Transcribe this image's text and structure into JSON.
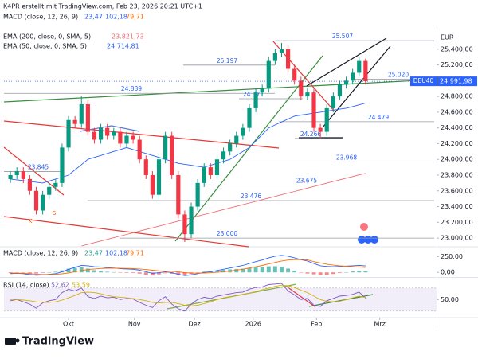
{
  "header": "K4PR erstellt mit TradingView.com, Feb 23, 2026 20:21 UTC+1",
  "footer": {
    "brand": "TradingView"
  },
  "chart_data": [
    {
      "type": "candlestick",
      "currency": "EUR",
      "legend": [
        {
          "name": "MACD (close, 12, 26, 9)",
          "values": [
            "23,47",
            "102,18",
            "79,71"
          ],
          "colors": [
            "#2962ff",
            "#2962ff",
            "#ff6d00"
          ]
        }
      ],
      "categories": [
        null,
        null,
        null,
        null,
        null,
        null,
        null,
        null,
        null,
        null,
        null,
        null,
        null,
        null,
        null,
        null,
        null,
        null,
        null,
        null,
        null,
        null,
        null,
        null,
        null,
        null,
        null,
        null,
        null,
        null,
        null,
        null,
        null,
        null,
        null,
        null,
        null,
        null,
        null,
        null,
        null,
        null,
        null,
        null,
        null,
        null,
        null,
        null,
        null,
        null,
        null,
        null,
        null,
        null,
        null,
        null
      ],
      "open": [
        23750,
        23800,
        23850,
        23750,
        23600,
        23350,
        23550,
        23650,
        23700,
        24150,
        24500,
        24450,
        24700,
        24350,
        24250,
        24400,
        24300,
        24350,
        24200,
        24300,
        24250,
        24000,
        23800,
        23550,
        24000,
        24300,
        23800,
        23300,
        23050,
        23400,
        23700,
        23900,
        23800,
        24000,
        24100,
        24200,
        24300,
        24400,
        24650,
        24850,
        24900,
        25250,
        25350,
        25400,
        25150,
        25000,
        24800,
        24850,
        24400,
        24350,
        24650,
        24800,
        24950,
        25000,
        25100,
        25250
      ],
      "high": [
        23850,
        23900,
        23900,
        23800,
        23650,
        23600,
        23700,
        23750,
        24200,
        24550,
        24550,
        24800,
        24750,
        24400,
        24450,
        24450,
        24400,
        24400,
        24350,
        24350,
        24300,
        24050,
        23850,
        24050,
        24350,
        24350,
        23850,
        23350,
        23450,
        23750,
        23950,
        23950,
        24050,
        24150,
        24250,
        24350,
        24450,
        24700,
        24900,
        24950,
        25300,
        25400,
        25480,
        25450,
        25200,
        25050,
        24900,
        24900,
        24450,
        24700,
        24850,
        25000,
        25050,
        25150,
        25300,
        25280
      ],
      "low": [
        23700,
        23750,
        23700,
        23550,
        23300,
        23300,
        23500,
        23600,
        23650,
        24100,
        24400,
        24400,
        24300,
        24200,
        24200,
        24250,
        24250,
        24150,
        24150,
        24200,
        23950,
        23750,
        23500,
        23500,
        23950,
        23750,
        23250,
        22950,
        23000,
        23350,
        23650,
        23750,
        23750,
        23950,
        24050,
        24150,
        24250,
        24350,
        24600,
        24800,
        24850,
        25200,
        25300,
        25100,
        24950,
        24750,
        24750,
        24350,
        24270,
        24300,
        24600,
        24750,
        24900,
        24950,
        25050,
        24950
      ],
      "close": [
        23800,
        23850,
        23750,
        23600,
        23350,
        23550,
        23650,
        23700,
        24150,
        24500,
        24450,
        24700,
        24350,
        24250,
        24400,
        24300,
        24350,
        24200,
        24300,
        24250,
        24000,
        23800,
        23550,
        24000,
        24300,
        23800,
        23300,
        23050,
        23400,
        23700,
        23900,
        23800,
        24000,
        24100,
        24200,
        24300,
        24400,
        24650,
        24850,
        24900,
        25250,
        25350,
        25400,
        25150,
        25000,
        24800,
        24850,
        24400,
        24350,
        24650,
        24800,
        24950,
        25000,
        25100,
        25250,
        24991.98
      ],
      "up_color": "#089981",
      "down_color": "#f23645",
      "series": [
        {
          "name": "EMA (200, close, 0, SMA, 5)",
          "last_label": "23.821,73",
          "color": "#f06b73",
          "values": [
            null,
            null,
            null,
            null,
            null,
            null,
            null,
            null,
            null,
            null,
            null,
            22900,
            22921,
            22942,
            22963,
            22984,
            23005,
            23026,
            23047,
            23068,
            23089,
            23110,
            23131,
            23152,
            23173,
            23194,
            23215,
            23236,
            23257,
            23278,
            23299,
            23320,
            23341,
            23362,
            23383,
            23404,
            23425,
            23446,
            23467,
            23488,
            23509,
            23530,
            23551,
            23572,
            23593,
            23614,
            23635,
            23656,
            23677,
            23698,
            23719,
            23740,
            23761,
            23782,
            23803,
            23821.73
          ]
        },
        {
          "name": "EMA (50, close, 0, SMA, 5)",
          "last_label": "24.714,81",
          "color": "#2962ff",
          "values": [
            23750,
            23740,
            23730,
            23720,
            23710,
            23700,
            23725,
            23750,
            23775,
            23800,
            23867,
            23933,
            24000,
            24025,
            24050,
            24075,
            24100,
            24125,
            24150,
            24125,
            24100,
            24075,
            24050,
            24025,
            24000,
            23975,
            23950,
            23937,
            23925,
            23912,
            23900,
            23925,
            23950,
            23975,
            24000,
            24050,
            24100,
            24150,
            24233,
            24317,
            24400,
            24438,
            24475,
            24513,
            24550,
            24563,
            24575,
            24588,
            24600,
            24613,
            24625,
            24638,
            24650,
            24671,
            24693,
            24714.81
          ]
        }
      ],
      "price_tag": {
        "name": "DEU40",
        "value": 24991.98,
        "label": "24.991,98",
        "color": "#2962ff"
      },
      "levels": [
        {
          "value": 25507,
          "label": "25.507"
        },
        {
          "value": 25197,
          "label": "25.197"
        },
        {
          "value": 25020,
          "label": "25.020"
        },
        {
          "value": 24839,
          "label": "24.839"
        },
        {
          "value": 24771,
          "label": "24.771"
        },
        {
          "value": 24479,
          "label": "24.479"
        },
        {
          "value": 24266,
          "label": "24.266"
        },
        {
          "value": 23968,
          "label": "23.968"
        },
        {
          "value": 23845,
          "label": "23.845"
        },
        {
          "value": 23675,
          "label": "23.675"
        },
        {
          "value": 23476,
          "label": "23.476"
        },
        {
          "value": 23000,
          "label": "23.000"
        }
      ],
      "markers": [
        "K",
        "S"
      ],
      "xlim": [
        -1,
        66
      ],
      "xticks": [
        {
          "value": 9,
          "label": "Okt"
        },
        {
          "value": 19.2,
          "label": "Nov"
        },
        {
          "value": 28.5,
          "label": "Dez"
        },
        {
          "value": 37.6,
          "label": "2026"
        },
        {
          "value": 47.4,
          "label": "Feb"
        },
        {
          "value": 57.2,
          "label": "Mrz"
        }
      ],
      "ylim": [
        22900,
        25620
      ],
      "yticks": [
        {
          "value": 25400,
          "label": "25.400,00"
        },
        {
          "value": 25200,
          "label": "25.200,00"
        },
        {
          "value": 24800,
          "label": "24.800,00"
        },
        {
          "value": 24600,
          "label": "24.600,00"
        },
        {
          "value": 24400,
          "label": "24.400,00"
        },
        {
          "value": 24200,
          "label": "24.200,00"
        },
        {
          "value": 24000,
          "label": "24.000,00"
        },
        {
          "value": 23800,
          "label": "23.800,00"
        },
        {
          "value": 23600,
          "label": "23.600,00"
        },
        {
          "value": 23400,
          "label": "23.400,00"
        },
        {
          "value": 23200,
          "label": "23.200,00"
        },
        {
          "value": 23000,
          "label": "23.000,00"
        }
      ]
    },
    {
      "type": "macd",
      "title": "MACD (close, 12, 26, 9)",
      "value_texts": [
        "23,47",
        "102,18",
        "79,71"
      ],
      "histogram": {
        "up_color": "#26a69a",
        "down_color": "#ef5350",
        "values": [
          -10,
          -3,
          -6,
          -15,
          -17,
          -8,
          2,
          10,
          32,
          58,
          70,
          80,
          60,
          35,
          23,
          10,
          4,
          -5,
          -8,
          -10,
          -20,
          -36,
          -49,
          -31,
          -13,
          -22,
          -38,
          -46,
          -29,
          -7,
          10,
          16,
          29,
          39,
          47,
          54,
          59,
          71,
          81,
          85,
          96,
          97,
          90,
          60,
          28,
          -2,
          -18,
          -30,
          -45,
          -35,
          -25,
          -10,
          3,
          15,
          25,
          23.47
        ]
      },
      "series": [
        {
          "color": "#2962ff",
          "values": [
            -20,
            -15,
            -20,
            -35,
            -45,
            -40,
            -30,
            -20,
            10,
            50,
            80,
            110,
            105,
            90,
            85,
            75,
            70,
            60,
            55,
            50,
            35,
            10,
            -15,
            -5,
            10,
            -5,
            -30,
            -50,
            -40,
            -20,
            0,
            10,
            30,
            50,
            70,
            90,
            110,
            140,
            170,
            195,
            230,
            255,
            270,
            255,
            230,
            200,
            180,
            140,
            105,
            95,
            90,
            95,
            100,
            105,
            110,
            102.18
          ]
        },
        {
          "color": "#ff6d00",
          "values": [
            -10,
            -12,
            -14,
            -20,
            -28,
            -32,
            -32,
            -30,
            -22,
            -8,
            10,
            30,
            45,
            55,
            62,
            65,
            66,
            65,
            63,
            60,
            55,
            46,
            34,
            26,
            23,
            17,
            8,
            -4,
            -11,
            -13,
            -10,
            -6,
            1,
            11,
            23,
            36,
            51,
            69,
            89,
            110,
            134,
            158,
            180,
            195,
            202,
            202,
            198,
            170,
            150,
            130,
            115,
            105,
            97,
            90,
            85,
            79.71
          ]
        }
      ],
      "ylim": [
        -60,
        380
      ],
      "yticks": [
        {
          "value": 250,
          "label": "250,00"
        },
        {
          "value": 0,
          "label": "0,00"
        }
      ]
    },
    {
      "type": "rsi",
      "title": "RSI (14, close)",
      "value_texts": [
        "52,62",
        "53,59"
      ],
      "band": [
        30,
        70
      ],
      "series": [
        {
          "color": "#7e57c2",
          "values": [
            48,
            50,
            46,
            42,
            35,
            44,
            48,
            50,
            62,
            68,
            65,
            70,
            55,
            52,
            56,
            53,
            54,
            50,
            52,
            51,
            45,
            40,
            36,
            48,
            55,
            42,
            34,
            30,
            42,
            50,
            54,
            52,
            56,
            58,
            60,
            62,
            63,
            68,
            71,
            72,
            76,
            77,
            78,
            65,
            58,
            50,
            52,
            40,
            38,
            48,
            52,
            56,
            57,
            59,
            63,
            52.62
          ]
        },
        {
          "color": "#d4b106",
          "values": [
            50,
            50,
            49,
            48,
            46,
            45,
            45,
            46,
            49,
            53,
            57,
            62,
            63,
            62,
            60,
            57,
            55,
            54,
            53,
            52,
            50,
            48,
            45,
            44,
            45,
            45,
            43,
            40,
            39,
            40,
            43,
            46,
            50,
            53,
            55,
            57,
            59,
            61,
            64,
            67,
            70,
            73,
            75,
            74,
            71,
            66,
            62,
            56,
            50,
            47,
            46,
            47,
            50,
            53,
            56,
            53.59
          ]
        }
      ],
      "ylim": [
        20,
        85
      ],
      "yticks": [
        {
          "value": 50,
          "label": "50,00"
        }
      ]
    }
  ]
}
